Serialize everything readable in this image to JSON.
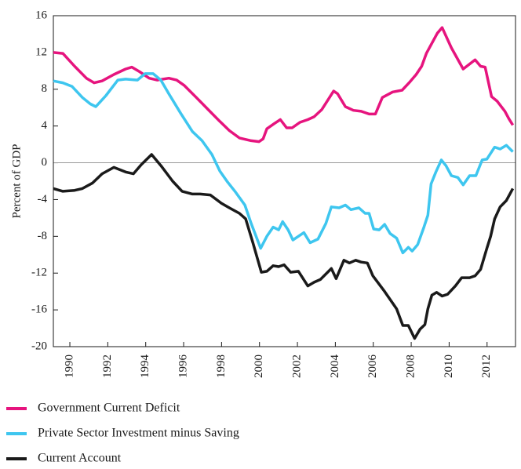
{
  "chart_data": {
    "type": "line",
    "y_label": "Percent of GDP",
    "xlim": [
      1989.13,
      2013.5
    ],
    "xticks": [
      1990,
      1992,
      1994,
      1996,
      1998,
      2000,
      2002,
      2004,
      2006,
      2008,
      2010,
      2012
    ],
    "ylim": [
      -20,
      16
    ],
    "yticks": [
      -20,
      -16,
      -12,
      -8,
      -4,
      0,
      4,
      8,
      12,
      16
    ],
    "series": [
      {
        "name": "Government Current Deficit",
        "color": "#e6147e",
        "x": [
          1989.13,
          1989.63,
          1990.25,
          1990.87,
          1991.28,
          1991.7,
          1992.32,
          1992.94,
          1993.27,
          1993.68,
          1994.18,
          1994.6,
          1995.22,
          1995.63,
          1996.04,
          1996.67,
          1997.29,
          1997.91,
          1998.41,
          1998.94,
          1999.56,
          1999.98,
          2000.19,
          2000.39,
          2000.81,
          2001.1,
          2001.43,
          2001.72,
          2002.13,
          2002.55,
          2002.88,
          2003.29,
          2003.91,
          2004.12,
          2004.53,
          2004.95,
          2005.36,
          2005.78,
          2006.11,
          2006.48,
          2007.02,
          2007.52,
          2007.93,
          2008.26,
          2008.55,
          2008.8,
          2009.09,
          2009.38,
          2009.63,
          2010.12,
          2010.74,
          2011.37,
          2011.66,
          2011.9,
          2012.24,
          2012.53,
          2012.94,
          2013.15,
          2013.36
        ],
        "values": [
          12,
          11.9,
          10.5,
          9.2,
          8.7,
          8.9,
          9.6,
          10.2,
          10.4,
          9.9,
          9.2,
          9.0,
          9.2,
          9.0,
          8.4,
          7.1,
          5.8,
          4.5,
          3.5,
          2.7,
          2.4,
          2.3,
          2.6,
          3.7,
          4.3,
          4.7,
          3.8,
          3.8,
          4.4,
          4.7,
          5.0,
          5.8,
          7.8,
          7.5,
          6.1,
          5.7,
          5.6,
          5.3,
          5.3,
          7.1,
          7.7,
          7.9,
          8.8,
          9.6,
          10.5,
          11.9,
          13.0,
          14.1,
          14.7,
          12.5,
          10.2,
          11.2,
          10.5,
          10.4,
          7.2,
          6.7,
          5.6,
          4.8,
          4.1
        ]
      },
      {
        "name": "Private Sector Investment minus Saving",
        "color": "#3ec6ef",
        "x": [
          1989.13,
          1989.63,
          1990.12,
          1990.66,
          1991.08,
          1991.37,
          1991.9,
          1992.53,
          1992.94,
          1993.56,
          1993.97,
          1994.39,
          1994.8,
          1995.22,
          1995.84,
          1996.46,
          1996.97,
          1997.49,
          1997.91,
          1998.32,
          1998.74,
          1999.23,
          1999.56,
          2000.06,
          2000.39,
          2000.72,
          2001.01,
          2001.22,
          2001.51,
          2001.76,
          2002.05,
          2002.34,
          2002.67,
          2003.08,
          2003.5,
          2003.79,
          2004.2,
          2004.53,
          2004.82,
          2005.24,
          2005.57,
          2005.78,
          2006.02,
          2006.31,
          2006.6,
          2006.89,
          2007.23,
          2007.56,
          2007.85,
          2008.05,
          2008.34,
          2008.67,
          2008.88,
          2009.05,
          2009.3,
          2009.59,
          2009.83,
          2010.12,
          2010.46,
          2010.74,
          2011.08,
          2011.41,
          2011.74,
          2011.99,
          2012.4,
          2012.69,
          2013.02,
          2013.36
        ],
        "values": [
          8.9,
          8.7,
          8.3,
          7.1,
          6.4,
          6.1,
          7.3,
          9.0,
          9.1,
          9.0,
          9.7,
          9.7,
          9.0,
          7.5,
          5.4,
          3.4,
          2.4,
          0.9,
          -0.9,
          -2.1,
          -3.2,
          -4.6,
          -6.6,
          -9.3,
          -8.0,
          -7.0,
          -7.3,
          -6.4,
          -7.3,
          -8.4,
          -8.0,
          -7.6,
          -8.7,
          -8.3,
          -6.6,
          -4.8,
          -4.9,
          -4.6,
          -5.1,
          -4.9,
          -5.5,
          -5.5,
          -7.2,
          -7.3,
          -6.7,
          -7.7,
          -8.2,
          -9.8,
          -9.2,
          -9.6,
          -8.9,
          -7.0,
          -5.7,
          -2.3,
          -1.0,
          0.3,
          -0.3,
          -1.4,
          -1.6,
          -2.4,
          -1.4,
          -1.4,
          0.3,
          0.4,
          1.7,
          1.5,
          1.9,
          1.2
        ]
      },
      {
        "name": "Current Account",
        "color": "#1a1a1a",
        "x": [
          1989.13,
          1989.63,
          1990.25,
          1990.66,
          1991.2,
          1991.7,
          1992.32,
          1992.94,
          1993.35,
          1993.77,
          1994.31,
          1994.8,
          1995.42,
          1995.92,
          1996.46,
          1996.87,
          1997.41,
          1997.99,
          1998.41,
          1998.94,
          1999.27,
          1999.65,
          2000.1,
          2000.39,
          2000.72,
          2001.01,
          2001.3,
          2001.64,
          2002.05,
          2002.55,
          2002.88,
          2003.21,
          2003.5,
          2003.79,
          2004.04,
          2004.45,
          2004.74,
          2005.07,
          2005.36,
          2005.69,
          2005.98,
          2006.6,
          2007.23,
          2007.56,
          2007.85,
          2008.18,
          2008.47,
          2008.72,
          2008.88,
          2009.09,
          2009.34,
          2009.63,
          2009.92,
          2010.33,
          2010.66,
          2011.08,
          2011.37,
          2011.66,
          2011.99,
          2012.19,
          2012.4,
          2012.69,
          2013.02,
          2013.36
        ],
        "values": [
          -2.8,
          -3.1,
          -3.0,
          -2.8,
          -2.2,
          -1.2,
          -0.5,
          -1.0,
          -1.2,
          -0.2,
          0.9,
          -0.3,
          -2.0,
          -3.1,
          -3.4,
          -3.4,
          -3.5,
          -4.4,
          -4.9,
          -5.5,
          -6.1,
          -8.7,
          -11.9,
          -11.8,
          -11.2,
          -11.3,
          -11.1,
          -11.9,
          -11.8,
          -13.4,
          -13.0,
          -12.7,
          -12.1,
          -11.5,
          -12.6,
          -10.6,
          -10.9,
          -10.6,
          -10.8,
          -10.9,
          -12.3,
          -14.0,
          -15.9,
          -17.7,
          -17.7,
          -19.1,
          -18.1,
          -17.6,
          -15.9,
          -14.4,
          -14.1,
          -14.5,
          -14.3,
          -13.4,
          -12.5,
          -12.5,
          -12.3,
          -11.6,
          -9.3,
          -8.0,
          -6.1,
          -4.8,
          -4.1,
          -2.8
        ]
      }
    ]
  }
}
